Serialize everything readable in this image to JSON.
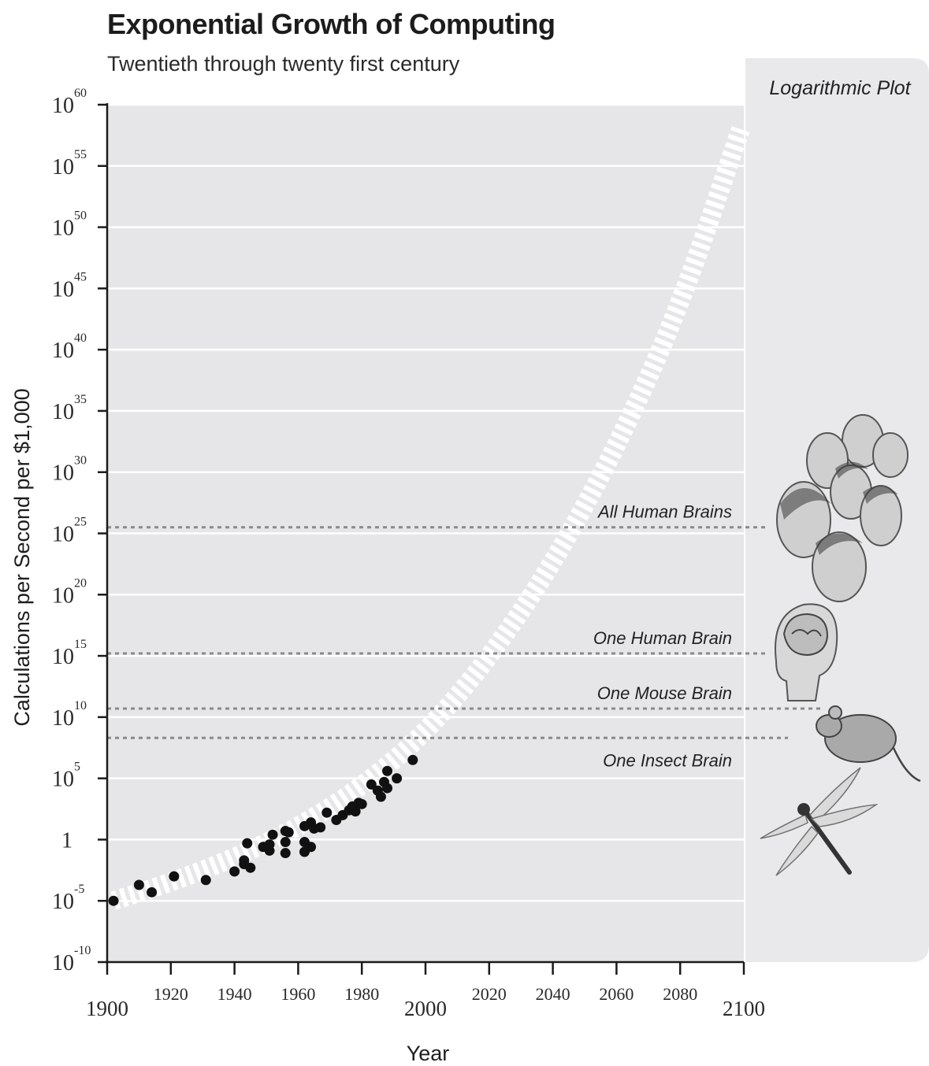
{
  "title": "Exponential Growth of Computing",
  "subtitle": "Twentieth through twenty first century",
  "colors": {
    "plot_bg": "#e6e6e8",
    "panel_bg": "#e9e9eb",
    "gridline": "#ffffff",
    "points": "#111111",
    "trend_band": "#ffffff",
    "threshold_line": "#8a8a8a"
  },
  "icons": [
    "human-crowd-icon",
    "human-brain-head-icon",
    "mouse-icon",
    "dragonfly-icon"
  ],
  "chart_data": {
    "type": "scatter",
    "title": "Exponential Growth of Computing",
    "subtitle": "Twentieth through twenty first century",
    "xlabel": "Year",
    "ylabel": "Calculations per Second per $1,000",
    "y_scale": "log10",
    "xlim": [
      1900,
      2100
    ],
    "ylim_exponent": [
      -10,
      60
    ],
    "x_ticks": [
      1900,
      1920,
      1940,
      1960,
      1980,
      2000,
      2020,
      2040,
      2060,
      2080,
      2100
    ],
    "y_ticks": [
      {
        "base": "10",
        "exp": "60",
        "value": 60
      },
      {
        "base": "10",
        "exp": "55",
        "value": 55
      },
      {
        "base": "10",
        "exp": "50",
        "value": 50
      },
      {
        "base": "10",
        "exp": "45",
        "value": 45
      },
      {
        "base": "10",
        "exp": "40",
        "value": 40
      },
      {
        "base": "10",
        "exp": "35",
        "value": 35
      },
      {
        "base": "10",
        "exp": "30",
        "value": 30
      },
      {
        "base": "10",
        "exp": "25",
        "value": 25
      },
      {
        "base": "10",
        "exp": "20",
        "value": 20
      },
      {
        "base": "10",
        "exp": "15",
        "value": 15
      },
      {
        "base": "10",
        "exp": "10",
        "value": 10
      },
      {
        "base": "10",
        "exp": "5",
        "value": 5
      },
      {
        "base": "1",
        "exp": "",
        "value": 0
      },
      {
        "base": "10",
        "exp": "-5",
        "value": -5
      },
      {
        "base": "10",
        "exp": "-10",
        "value": -10
      }
    ],
    "grid": true,
    "series": [
      {
        "kind": "points",
        "points": [
          [
            1902,
            -5.0
          ],
          [
            1910,
            -3.7
          ],
          [
            1914,
            -4.3
          ],
          [
            1921,
            -3.0
          ],
          [
            1931,
            -3.3
          ],
          [
            1940,
            -2.6
          ],
          [
            1943,
            -1.7
          ],
          [
            1944,
            -0.3
          ],
          [
            1945,
            -2.3
          ],
          [
            1943,
            -2.0
          ],
          [
            1949,
            -0.6
          ],
          [
            1951,
            -0.4
          ],
          [
            1951,
            -0.9
          ],
          [
            1952,
            0.4
          ],
          [
            1956,
            0.7
          ],
          [
            1956,
            -0.2
          ],
          [
            1956,
            -1.1
          ],
          [
            1957,
            0.6
          ],
          [
            1962,
            -1.0
          ],
          [
            1962,
            -0.2
          ],
          [
            1962,
            1.1
          ],
          [
            1964,
            -0.6
          ],
          [
            1964,
            1.4
          ],
          [
            1965,
            0.9
          ],
          [
            1967,
            1.0
          ],
          [
            1969,
            2.2
          ],
          [
            1972,
            1.6
          ],
          [
            1974,
            2.0
          ],
          [
            1976,
            2.4
          ],
          [
            1977,
            2.7
          ],
          [
            1978,
            2.3
          ],
          [
            1979,
            3.0
          ],
          [
            1980,
            2.9
          ],
          [
            1983,
            4.5
          ],
          [
            1985,
            4.0
          ],
          [
            1986,
            3.5
          ],
          [
            1987,
            4.7
          ],
          [
            1988,
            4.2
          ],
          [
            1988,
            5.6
          ],
          [
            1991,
            5.0
          ],
          [
            1996,
            6.5
          ]
        ]
      },
      {
        "kind": "trend_band",
        "x": [
          1902,
          1920,
          1940,
          1960,
          1980,
          2000,
          2020,
          2040,
          2060,
          2080,
          2099
        ],
        "y": [
          -5.0,
          -3.5,
          -1.5,
          1.0,
          4.3,
          8.7,
          14.8,
          22.5,
          32.0,
          43.5,
          58.0
        ]
      }
    ],
    "thresholds": [
      {
        "label": "All Human Brains",
        "value": 25.5
      },
      {
        "label": "One Human Brain",
        "value": 15.2
      },
      {
        "label": "One Mouse Brain",
        "value": 10.7
      },
      {
        "label": "One Insect Brain",
        "value": 8.3
      }
    ],
    "panel_label": "Logarithmic Plot"
  }
}
